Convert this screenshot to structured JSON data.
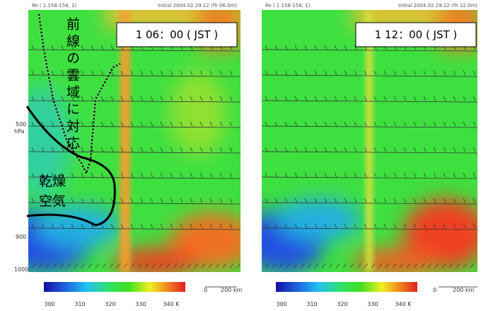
{
  "panels": [
    {
      "header_left": "θe ( 1.158-158, 1)",
      "header_right": "Initial 2004.02.29.12 (fh 06.0m)",
      "time": "1 06：00 ( JST )",
      "y_labels": [
        "500",
        "hPa",
        "900",
        "1000"
      ],
      "colorbar_labels": [
        "300",
        "310",
        "320",
        "330",
        "340 K"
      ],
      "scale": [
        "0",
        "200 km"
      ]
    },
    {
      "header_left": "θe ( 1.158-158, 1)",
      "header_right": "Initial 2004.02.29.12 (fh 12.0m)",
      "time": "1 12：00 ( JST )",
      "colorbar_labels": [
        "300",
        "310",
        "320",
        "330",
        "340 K"
      ],
      "scale": [
        "0",
        "200 km"
      ]
    }
  ],
  "annotations": {
    "front": "前線の雲域に対応",
    "dry": [
      "乾燥",
      "空気"
    ]
  }
}
